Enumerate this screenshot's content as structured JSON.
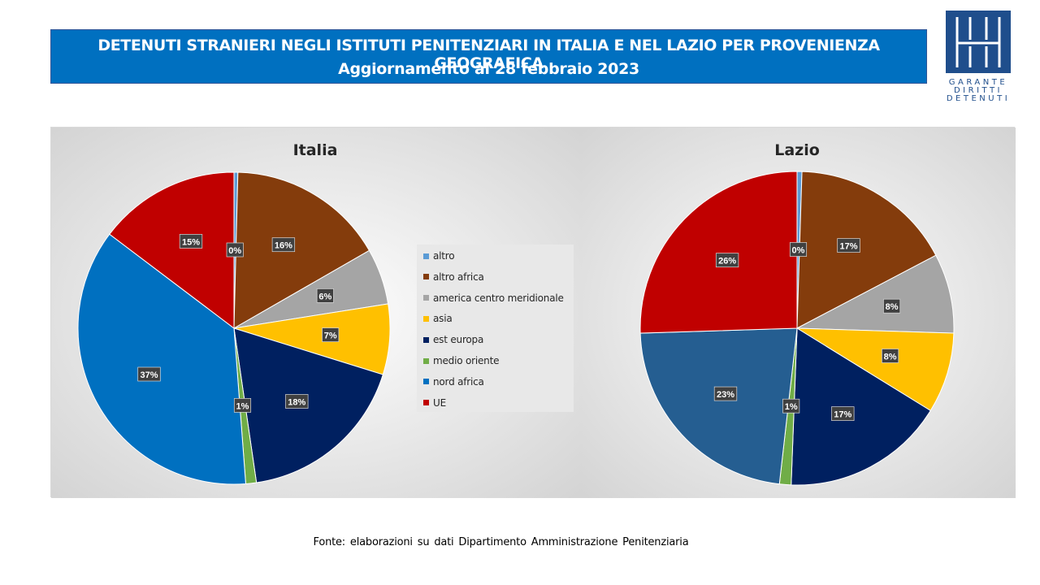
{
  "header": {
    "title_line1": "DETENUTI STRANIERI NEGLI ISTITUTI PENITENZIARI IN ITALIA E NEL LAZIO PER PROVENIENZA GEOGRAFICA",
    "title_line2": "Aggiornamento al 28 febbraio 2023"
  },
  "logo": {
    "line1": "GARANTE",
    "line2": "DIRITTI",
    "line3": "DETENUTI"
  },
  "legend": [
    {
      "label": "altro",
      "color": "#5b9bd5"
    },
    {
      "label": "altro africa",
      "color": "#843c0c"
    },
    {
      "label": "america centro meridionale",
      "color": "#a5a5a5"
    },
    {
      "label": "asia",
      "color": "#ffc000"
    },
    {
      "label": "est europa",
      "color": "#002060"
    },
    {
      "label": "medio oriente",
      "color": "#70ad47"
    },
    {
      "label": "nord africa",
      "color": "#0070c0"
    },
    {
      "label": "UE",
      "color": "#c00000"
    }
  ],
  "chart_data": [
    {
      "type": "pie",
      "title": "Italia",
      "categories": [
        "altro",
        "altro africa",
        "america centro meridionale",
        "asia",
        "est europa",
        "medio oriente",
        "nord africa",
        "UE"
      ],
      "values": [
        0.4,
        16.3,
        5.8,
        7.3,
        17.9,
        1.1,
        36.5,
        14.7
      ],
      "labels": [
        "0%",
        "16%",
        "6%",
        "7%",
        "18%",
        "1%",
        "37%",
        "15%"
      ],
      "colors": [
        "#5b9bd5",
        "#843c0c",
        "#a5a5a5",
        "#ffc000",
        "#002060",
        "#70ad47",
        "#0070c0",
        "#c00000"
      ]
    },
    {
      "type": "pie",
      "title": "Lazio",
      "categories": [
        "altro",
        "altro africa",
        "america centro meridionale",
        "asia",
        "est europa",
        "medio oriente",
        "nord africa",
        "UE"
      ],
      "values": [
        0.5,
        16.8,
        8.2,
        8.3,
        16.8,
        1.2,
        22.7,
        25.5
      ],
      "labels": [
        "0%",
        "17%",
        "8%",
        "8%",
        "17%",
        "1%",
        "23%",
        "26%"
      ],
      "colors": [
        "#5b9bd5",
        "#843c0c",
        "#a5a5a5",
        "#ffc000",
        "#002060",
        "#70ad47",
        "#255e91",
        "#c00000"
      ]
    }
  ],
  "footer": {
    "source": "Fonte: elaborazioni su dati Dipartimento Amministrazione Penitenziaria"
  }
}
